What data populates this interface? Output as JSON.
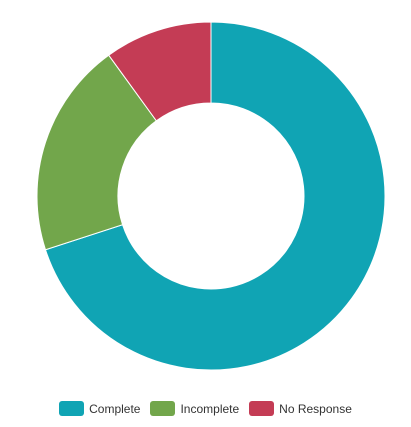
{
  "chart_data": {
    "type": "pie",
    "variant": "donut",
    "title": "",
    "slices": [
      {
        "label": "Complete",
        "value": 70,
        "color": "#10a4b4"
      },
      {
        "label": "Incomplete",
        "value": 20,
        "color": "#72a64b"
      },
      {
        "label": "No Response",
        "value": 10,
        "color": "#c43c55"
      }
    ],
    "legend_position": "bottom",
    "start_angle_deg": 0,
    "direction": "clockwise"
  }
}
